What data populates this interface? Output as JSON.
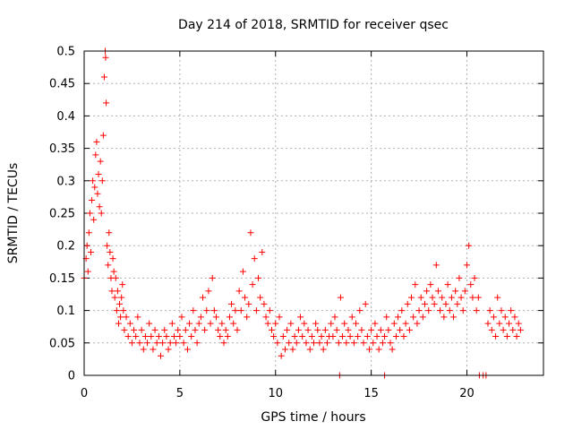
{
  "chart_data": {
    "type": "scatter",
    "title": "Day 214 of 2018, SRMTID for receiver qsec",
    "xlabel": "GPS time / hours",
    "ylabel": "SRMTID / TECUs",
    "xlim": [
      0,
      24
    ],
    "ylim": [
      0,
      0.5
    ],
    "xticks": [
      0,
      5,
      10,
      15,
      20
    ],
    "yticks": [
      0,
      0.05,
      0.1,
      0.15,
      0.2,
      0.25,
      0.3,
      0.35,
      0.4,
      0.45,
      0.5
    ],
    "xtick_labels": [
      "0",
      "5",
      "10",
      "15",
      "20"
    ],
    "ytick_labels": [
      "0",
      "0.05",
      "0.1",
      "0.15",
      "0.2",
      "0.25",
      "0.3",
      "0.35",
      "0.4",
      "0.45",
      "0.5"
    ],
    "grid": true,
    "marker": "+",
    "series": [
      {
        "name": "SRMTID",
        "color": "#ff0000",
        "x": [
          0.0,
          0.1,
          0.15,
          0.2,
          0.25,
          0.3,
          0.35,
          0.4,
          0.45,
          0.5,
          0.55,
          0.6,
          0.65,
          0.7,
          0.75,
          0.8,
          0.85,
          0.9,
          0.95,
          1.0,
          1.05,
          1.1,
          1.12,
          1.15,
          1.2,
          1.25,
          1.3,
          1.35,
          1.4,
          1.45,
          1.5,
          1.55,
          1.6,
          1.65,
          1.7,
          1.75,
          1.8,
          1.85,
          1.9,
          1.95,
          2.0,
          2.05,
          2.1,
          2.2,
          2.3,
          2.4,
          2.5,
          2.6,
          2.7,
          2.8,
          2.9,
          3.0,
          3.1,
          3.2,
          3.3,
          3.4,
          3.5,
          3.6,
          3.7,
          3.8,
          3.9,
          4.0,
          4.1,
          4.2,
          4.3,
          4.4,
          4.5,
          4.6,
          4.7,
          4.8,
          4.9,
          5.0,
          5.1,
          5.2,
          5.3,
          5.4,
          5.5,
          5.6,
          5.7,
          5.8,
          5.9,
          6.0,
          6.1,
          6.2,
          6.3,
          6.4,
          6.5,
          6.6,
          6.7,
          6.8,
          6.9,
          7.0,
          7.1,
          7.2,
          7.3,
          7.4,
          7.5,
          7.6,
          7.7,
          7.8,
          7.9,
          8.0,
          8.1,
          8.2,
          8.3,
          8.4,
          8.5,
          8.6,
          8.7,
          8.8,
          8.9,
          9.0,
          9.1,
          9.2,
          9.3,
          9.4,
          9.5,
          9.6,
          9.7,
          9.8,
          9.9,
          10.0,
          10.1,
          10.2,
          10.3,
          10.4,
          10.5,
          10.6,
          10.7,
          10.8,
          10.9,
          11.0,
          11.1,
          11.2,
          11.3,
          11.4,
          11.5,
          11.6,
          11.7,
          11.8,
          11.9,
          12.0,
          12.1,
          12.2,
          12.3,
          12.4,
          12.5,
          12.6,
          12.7,
          12.8,
          12.9,
          13.0,
          13.1,
          13.2,
          13.3,
          13.4,
          13.5,
          13.6,
          13.7,
          13.8,
          13.9,
          14.0,
          14.1,
          14.2,
          14.3,
          14.4,
          14.5,
          14.6,
          14.7,
          14.8,
          14.9,
          15.0,
          15.1,
          15.2,
          15.3,
          15.4,
          15.5,
          15.6,
          15.7,
          15.8,
          15.9,
          16.0,
          16.1,
          16.2,
          16.3,
          16.4,
          16.5,
          16.6,
          16.7,
          16.8,
          16.9,
          17.0,
          17.1,
          17.2,
          17.3,
          17.4,
          17.5,
          17.6,
          17.7,
          17.8,
          17.9,
          18.0,
          18.1,
          18.2,
          18.3,
          18.4,
          18.5,
          18.6,
          18.7,
          18.8,
          18.9,
          19.0,
          19.1,
          19.2,
          19.3,
          19.4,
          19.5,
          19.6,
          19.7,
          19.8,
          19.9,
          20.0,
          20.1,
          20.2,
          20.3,
          20.4,
          20.5,
          20.6,
          21.1,
          21.2,
          21.3,
          21.4,
          21.5,
          21.6,
          21.7,
          21.8,
          21.9,
          22.0,
          22.1,
          22.2,
          22.3,
          22.4,
          22.5,
          22.6,
          22.7,
          22.8,
          13.35,
          15.7,
          20.65,
          20.85,
          21.0
        ],
        "y": [
          0.15,
          0.18,
          0.2,
          0.16,
          0.22,
          0.25,
          0.19,
          0.27,
          0.3,
          0.24,
          0.29,
          0.34,
          0.36,
          0.28,
          0.31,
          0.26,
          0.33,
          0.25,
          0.3,
          0.37,
          0.46,
          0.5,
          0.49,
          0.42,
          0.2,
          0.17,
          0.22,
          0.19,
          0.15,
          0.13,
          0.18,
          0.16,
          0.12,
          0.15,
          0.1,
          0.13,
          0.08,
          0.11,
          0.09,
          0.12,
          0.14,
          0.1,
          0.07,
          0.09,
          0.06,
          0.08,
          0.05,
          0.07,
          0.06,
          0.09,
          0.05,
          0.07,
          0.04,
          0.06,
          0.05,
          0.08,
          0.06,
          0.04,
          0.07,
          0.05,
          0.06,
          0.03,
          0.05,
          0.07,
          0.06,
          0.04,
          0.05,
          0.08,
          0.06,
          0.05,
          0.07,
          0.06,
          0.09,
          0.05,
          0.07,
          0.04,
          0.08,
          0.06,
          0.1,
          0.07,
          0.05,
          0.08,
          0.09,
          0.12,
          0.07,
          0.1,
          0.13,
          0.08,
          0.15,
          0.1,
          0.09,
          0.07,
          0.06,
          0.08,
          0.05,
          0.07,
          0.06,
          0.09,
          0.11,
          0.08,
          0.1,
          0.07,
          0.13,
          0.1,
          0.16,
          0.12,
          0.09,
          0.11,
          0.22,
          0.14,
          0.18,
          0.1,
          0.15,
          0.12,
          0.19,
          0.11,
          0.09,
          0.08,
          0.1,
          0.07,
          0.06,
          0.08,
          0.05,
          0.09,
          0.03,
          0.06,
          0.04,
          0.07,
          0.05,
          0.08,
          0.04,
          0.06,
          0.05,
          0.07,
          0.09,
          0.06,
          0.08,
          0.05,
          0.07,
          0.04,
          0.06,
          0.05,
          0.08,
          0.07,
          0.05,
          0.06,
          0.04,
          0.07,
          0.05,
          0.06,
          0.08,
          0.06,
          0.09,
          0.07,
          0.05,
          0.12,
          0.06,
          0.08,
          0.05,
          0.07,
          0.06,
          0.09,
          0.05,
          0.08,
          0.06,
          0.1,
          0.07,
          0.05,
          0.11,
          0.06,
          0.04,
          0.07,
          0.05,
          0.08,
          0.06,
          0.04,
          0.07,
          0.05,
          0.06,
          0.09,
          0.07,
          0.05,
          0.04,
          0.08,
          0.06,
          0.09,
          0.07,
          0.1,
          0.06,
          0.08,
          0.11,
          0.07,
          0.12,
          0.09,
          0.14,
          0.08,
          0.1,
          0.12,
          0.09,
          0.11,
          0.13,
          0.1,
          0.14,
          0.12,
          0.11,
          0.17,
          0.13,
          0.1,
          0.12,
          0.09,
          0.11,
          0.14,
          0.1,
          0.12,
          0.09,
          0.13,
          0.11,
          0.15,
          0.12,
          0.1,
          0.13,
          0.17,
          0.2,
          0.14,
          0.12,
          0.15,
          0.1,
          0.12,
          0.08,
          0.1,
          0.07,
          0.09,
          0.06,
          0.12,
          0.08,
          0.1,
          0.07,
          0.09,
          0.06,
          0.08,
          0.1,
          0.07,
          0.09,
          0.06,
          0.08,
          0.07,
          0.0,
          0.0,
          0.0,
          0.0,
          0.0
        ]
      }
    ]
  }
}
